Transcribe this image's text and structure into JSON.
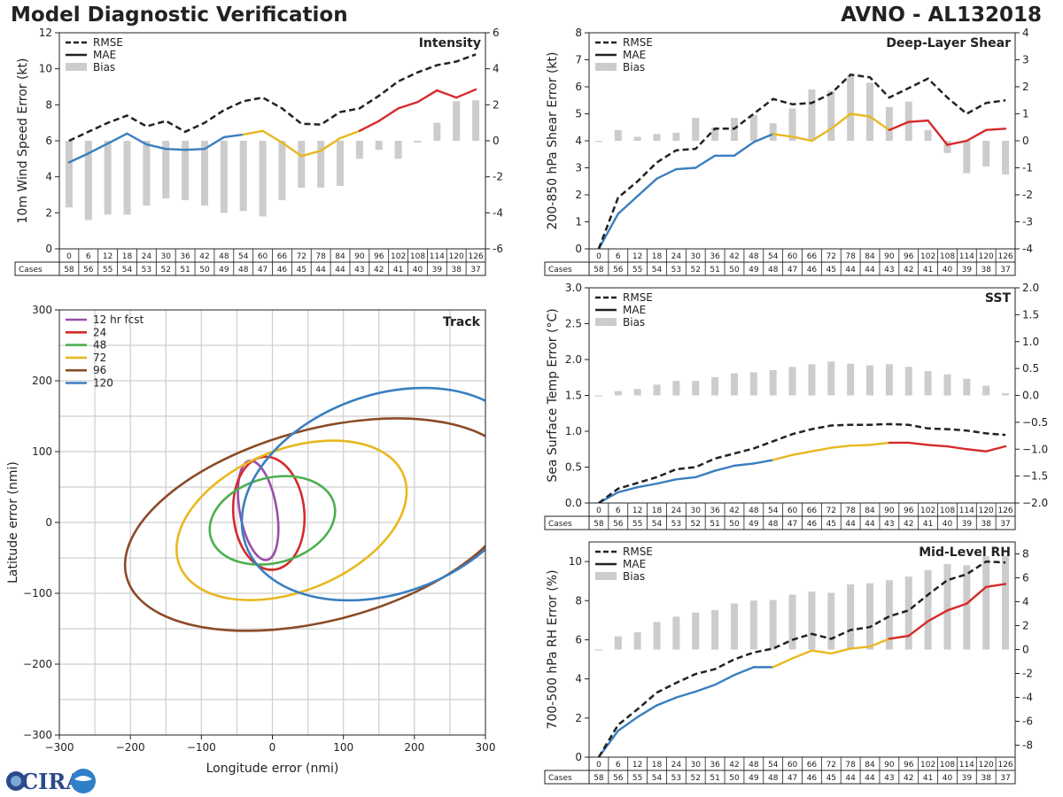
{
  "header": {
    "title_left": "Model Diagnostic Verification",
    "title_right": "AVNO - AL132018"
  },
  "logo": {
    "text": "CIRA"
  },
  "colors": {
    "rmse": "#222222",
    "mae": "#222222",
    "bias": "#cccccc",
    "blue": "#3a7fbf",
    "yellow": "#e8b820",
    "red": "#d62a2a",
    "purple": "#9a4fa8",
    "green": "#4caf50",
    "brown": "#8b4a25"
  },
  "chart_data": [
    {
      "id": "intensity",
      "type": "line",
      "title": "Intensity",
      "ylabel": "10m Wind Speed Error (kt)",
      "ylim": [
        0,
        12
      ],
      "yticks": [
        0,
        2,
        4,
        6,
        8,
        10,
        12
      ],
      "y2lim": [
        -6,
        6
      ],
      "y2ticks": [
        -6,
        -4,
        -2,
        0,
        2,
        4,
        6
      ],
      "legend": [
        "RMSE",
        "MAE",
        "Bias"
      ],
      "hours": [
        "0",
        "6",
        "12",
        "18",
        "24",
        "30",
        "36",
        "42",
        "48",
        "54",
        "60",
        "66",
        "72",
        "78",
        "84",
        "90",
        "96",
        "102",
        "108",
        "114",
        "120",
        "126"
      ],
      "cases": [
        "58",
        "56",
        "55",
        "54",
        "53",
        "52",
        "51",
        "50",
        "49",
        "48",
        "47",
        "46",
        "45",
        "44",
        "44",
        "43",
        "42",
        "41",
        "40",
        "39",
        "38",
        "37"
      ],
      "cases_label": "Cases",
      "rmse": [
        6.0,
        6.5,
        7.0,
        7.4,
        6.8,
        7.1,
        6.5,
        7.0,
        7.7,
        8.2,
        8.4,
        7.8,
        6.95,
        6.9,
        7.6,
        7.8,
        8.5,
        9.3,
        9.8,
        10.2,
        10.4,
        10.8
      ],
      "mae": [
        4.8,
        5.3,
        5.85,
        6.4,
        5.8,
        5.55,
        5.5,
        5.55,
        6.2,
        6.35,
        6.55,
        5.9,
        5.15,
        5.45,
        6.15,
        6.55,
        7.1,
        7.8,
        8.15,
        8.8,
        8.4,
        8.85
      ],
      "bias": [
        -3.7,
        -4.4,
        -4.1,
        -4.1,
        -3.6,
        -3.2,
        -3.3,
        -3.6,
        -4.0,
        -3.9,
        -4.2,
        -3.3,
        -2.6,
        -2.6,
        -2.5,
        -1.0,
        -0.5,
        -1.0,
        -0.1,
        1.0,
        2.2,
        2.25
      ]
    },
    {
      "id": "shear",
      "type": "line",
      "title": "Deep-Layer Shear",
      "ylabel": "200-850 hPa Shear Error (kt)",
      "ylim": [
        0,
        8
      ],
      "yticks": [
        0,
        1,
        2,
        3,
        4,
        5,
        6,
        7,
        8
      ],
      "y2lim": [
        -4,
        4
      ],
      "y2ticks": [
        -4,
        -3,
        -2,
        -1,
        0,
        1,
        2,
        3,
        4
      ],
      "legend": [
        "RMSE",
        "MAE",
        "Bias"
      ],
      "hours": [
        "0",
        "6",
        "12",
        "18",
        "24",
        "30",
        "36",
        "42",
        "48",
        "54",
        "60",
        "66",
        "72",
        "78",
        "84",
        "90",
        "96",
        "102",
        "108",
        "114",
        "120",
        "126"
      ],
      "cases": [
        "58",
        "56",
        "55",
        "54",
        "53",
        "52",
        "51",
        "50",
        "49",
        "48",
        "47",
        "46",
        "45",
        "44",
        "44",
        "43",
        "42",
        "41",
        "40",
        "39",
        "38",
        "37"
      ],
      "cases_label": "Cases",
      "rmse": [
        0.0,
        1.9,
        2.5,
        3.2,
        3.65,
        3.7,
        4.45,
        4.45,
        5.0,
        5.55,
        5.35,
        5.4,
        5.75,
        6.45,
        6.35,
        5.6,
        5.95,
        6.3,
        5.6,
        5.0,
        5.4,
        5.5
      ],
      "mae": [
        0.0,
        1.3,
        1.95,
        2.6,
        2.95,
        3.0,
        3.45,
        3.45,
        3.95,
        4.25,
        4.15,
        4.0,
        4.45,
        5.0,
        4.9,
        4.4,
        4.7,
        4.75,
        3.85,
        4.0,
        4.4,
        4.45
      ],
      "bias": [
        0.0,
        0.4,
        0.15,
        0.25,
        0.3,
        0.85,
        0.5,
        0.85,
        0.95,
        0.65,
        1.2,
        1.9,
        1.85,
        2.4,
        2.15,
        1.25,
        1.45,
        0.4,
        -0.45,
        -1.2,
        -0.95,
        -1.25
      ]
    },
    {
      "id": "sst",
      "type": "line",
      "title": "SST",
      "ylabel": "Sea Surface Temp Error (°C)",
      "ylim": [
        0,
        3
      ],
      "yticks": [
        "0.0",
        "0.5",
        "1.0",
        "1.5",
        "2.0",
        "2.5",
        "3.0"
      ],
      "y2lim": [
        -2,
        2
      ],
      "y2ticks": [
        "−2.0",
        "−1.5",
        "−1.0",
        "−0.5",
        "0.0",
        "0.5",
        "1.0",
        "1.5",
        "2.0"
      ],
      "legend": [
        "RMSE",
        "MAE",
        "Bias"
      ],
      "hours": [
        "0",
        "6",
        "12",
        "18",
        "24",
        "30",
        "36",
        "42",
        "48",
        "54",
        "60",
        "66",
        "72",
        "78",
        "84",
        "90",
        "96",
        "102",
        "108",
        "114",
        "120",
        "126"
      ],
      "cases": [
        "58",
        "56",
        "55",
        "54",
        "53",
        "52",
        "51",
        "50",
        "49",
        "48",
        "47",
        "46",
        "45",
        "44",
        "44",
        "43",
        "42",
        "41",
        "40",
        "39",
        "38",
        "37"
      ],
      "cases_label": "Cases",
      "rmse": [
        0.0,
        0.2,
        0.28,
        0.36,
        0.47,
        0.5,
        0.62,
        0.69,
        0.76,
        0.86,
        0.96,
        1.03,
        1.08,
        1.09,
        1.09,
        1.1,
        1.09,
        1.04,
        1.03,
        1.01,
        0.97,
        0.95
      ],
      "mae": [
        0.0,
        0.15,
        0.22,
        0.27,
        0.33,
        0.36,
        0.45,
        0.52,
        0.55,
        0.6,
        0.67,
        0.72,
        0.77,
        0.8,
        0.81,
        0.84,
        0.84,
        0.81,
        0.79,
        0.75,
        0.72,
        0.79
      ],
      "bias": [
        0.0,
        0.08,
        0.12,
        0.2,
        0.27,
        0.27,
        0.34,
        0.41,
        0.43,
        0.47,
        0.53,
        0.58,
        0.63,
        0.59,
        0.56,
        0.58,
        0.53,
        0.45,
        0.39,
        0.31,
        0.18,
        0.04
      ]
    },
    {
      "id": "rh",
      "type": "line",
      "title": "Mid-Level RH",
      "ylabel": "700-500 hPa RH Error (%)",
      "ylim": [
        0,
        11
      ],
      "yticks": [
        0,
        2,
        4,
        6,
        8,
        10
      ],
      "y2lim": [
        -9,
        9
      ],
      "y2ticks": [
        -8,
        -6,
        -4,
        -2,
        0,
        2,
        4,
        6,
        8
      ],
      "legend": [
        "RMSE",
        "MAE",
        "Bias"
      ],
      "hours": [
        "0",
        "6",
        "12",
        "18",
        "24",
        "30",
        "36",
        "42",
        "48",
        "54",
        "60",
        "66",
        "72",
        "78",
        "84",
        "90",
        "96",
        "102",
        "108",
        "114",
        "120",
        "126"
      ],
      "cases": [
        "58",
        "56",
        "55",
        "54",
        "53",
        "52",
        "51",
        "50",
        "49",
        "48",
        "47",
        "46",
        "45",
        "44",
        "44",
        "43",
        "42",
        "41",
        "40",
        "39",
        "38",
        "37"
      ],
      "cases_label": "Cases",
      "rmse": [
        0.0,
        1.65,
        2.45,
        3.3,
        3.8,
        4.25,
        4.5,
        5.0,
        5.35,
        5.55,
        6.0,
        6.3,
        6.05,
        6.5,
        6.65,
        7.2,
        7.5,
        8.3,
        9.05,
        9.35,
        10.0,
        9.95
      ],
      "mae": [
        0.0,
        1.35,
        2.05,
        2.65,
        3.05,
        3.35,
        3.7,
        4.2,
        4.6,
        4.6,
        5.05,
        5.45,
        5.3,
        5.55,
        5.65,
        6.05,
        6.2,
        6.95,
        7.5,
        7.85,
        8.7,
        8.85
      ],
      "bias": [
        0.0,
        1.1,
        1.45,
        2.3,
        2.75,
        3.1,
        3.3,
        3.85,
        4.1,
        4.15,
        4.6,
        4.85,
        4.75,
        5.45,
        5.55,
        5.8,
        6.1,
        6.65,
        7.15,
        7.05,
        7.8,
        7.85
      ]
    },
    {
      "id": "track",
      "type": "ellipse",
      "title": "Track",
      "xlabel": "Longitude error (nmi)",
      "ylabel": "Latitude error (nmi)",
      "xlim": [
        -300,
        300
      ],
      "ylim": [
        -300,
        300
      ],
      "xticks": [
        "−300",
        "−200",
        "−100",
        "0",
        "100",
        "200",
        "300"
      ],
      "yticks": [
        "−300",
        "−200",
        "−100",
        "0",
        "100",
        "200",
        "300"
      ],
      "series": [
        {
          "name": "12 hr fcst",
          "color": "#9a4fa8",
          "cx": -20,
          "cy": 17,
          "rx": 26,
          "ry": 71,
          "angle": 10
        },
        {
          "name": "24",
          "color": "#d62a2a",
          "cx": -5,
          "cy": 13,
          "rx": 50,
          "ry": 80,
          "angle": 5
        },
        {
          "name": "48",
          "color": "#4caf50",
          "cx": 0,
          "cy": 3,
          "rx": 90,
          "ry": 60,
          "angle": 15
        },
        {
          "name": "72",
          "color": "#e8b820",
          "cx": 27,
          "cy": 3,
          "rx": 170,
          "ry": 100,
          "angle": 22
        },
        {
          "name": "96",
          "color": "#8b4a25",
          "cx": 70,
          "cy": -3,
          "rx": 285,
          "ry": 135,
          "angle": 15
        },
        {
          "name": "120",
          "color": "#3a7fbf",
          "cx": 160,
          "cy": 40,
          "rx": 210,
          "ry": 140,
          "angle": 20
        }
      ]
    }
  ]
}
